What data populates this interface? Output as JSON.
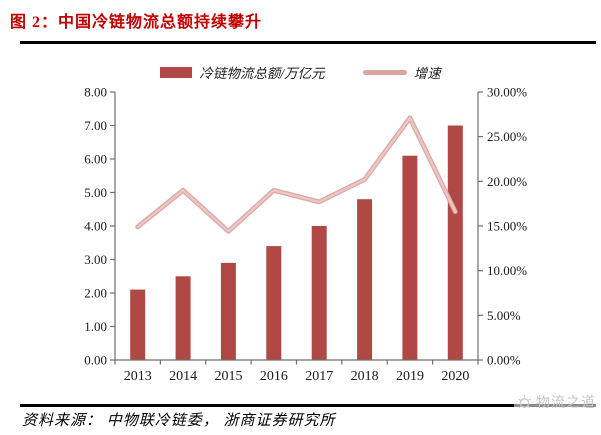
{
  "header": {
    "title": "图 2：中国冷链物流总额持续攀升"
  },
  "legend": [
    {
      "label": "冷链物流总额/万亿元",
      "type": "bar"
    },
    {
      "label": "增速",
      "type": "line"
    }
  ],
  "footer": {
    "source": "资料来源： 中物联冷链委， 浙商证券研究所",
    "watermark": "物流之道"
  },
  "colors": {
    "title": "#c00000",
    "bar": "#b04845",
    "line_outer": "#d9a5a2",
    "line_inner": "#ecc6c3",
    "axis": "#6f6f6f",
    "tick_text": "#1a1a1a",
    "watermark": "#c6c6c6"
  },
  "chart_data": {
    "type": "bar",
    "subtype": "bar+line combo, dual axis",
    "title": "中国冷链物流总额持续攀升",
    "categories": [
      "2013",
      "2014",
      "2015",
      "2016",
      "2017",
      "2018",
      "2019",
      "2020"
    ],
    "series": [
      {
        "name": "冷链物流总额/万亿元",
        "type": "bar",
        "axis": "left",
        "values": [
          2.1,
          2.5,
          2.9,
          3.4,
          4.0,
          4.8,
          6.1,
          7.0
        ]
      },
      {
        "name": "增速",
        "type": "line",
        "axis": "right",
        "values": [
          14.9,
          19.0,
          14.4,
          19.0,
          17.7,
          20.2,
          27.1,
          16.6
        ]
      }
    ],
    "left_axis": {
      "min": 0,
      "max": 8,
      "ticks": [
        "0.00",
        "1.00",
        "2.00",
        "3.00",
        "4.00",
        "5.00",
        "6.00",
        "7.00",
        "8.00"
      ]
    },
    "right_axis": {
      "min": 0,
      "max": 30,
      "ticks": [
        "0.00%",
        "5.00%",
        "10.00%",
        "15.00%",
        "20.00%",
        "25.00%",
        "30.00%"
      ]
    },
    "grid": false,
    "legend_position": "top-center"
  }
}
